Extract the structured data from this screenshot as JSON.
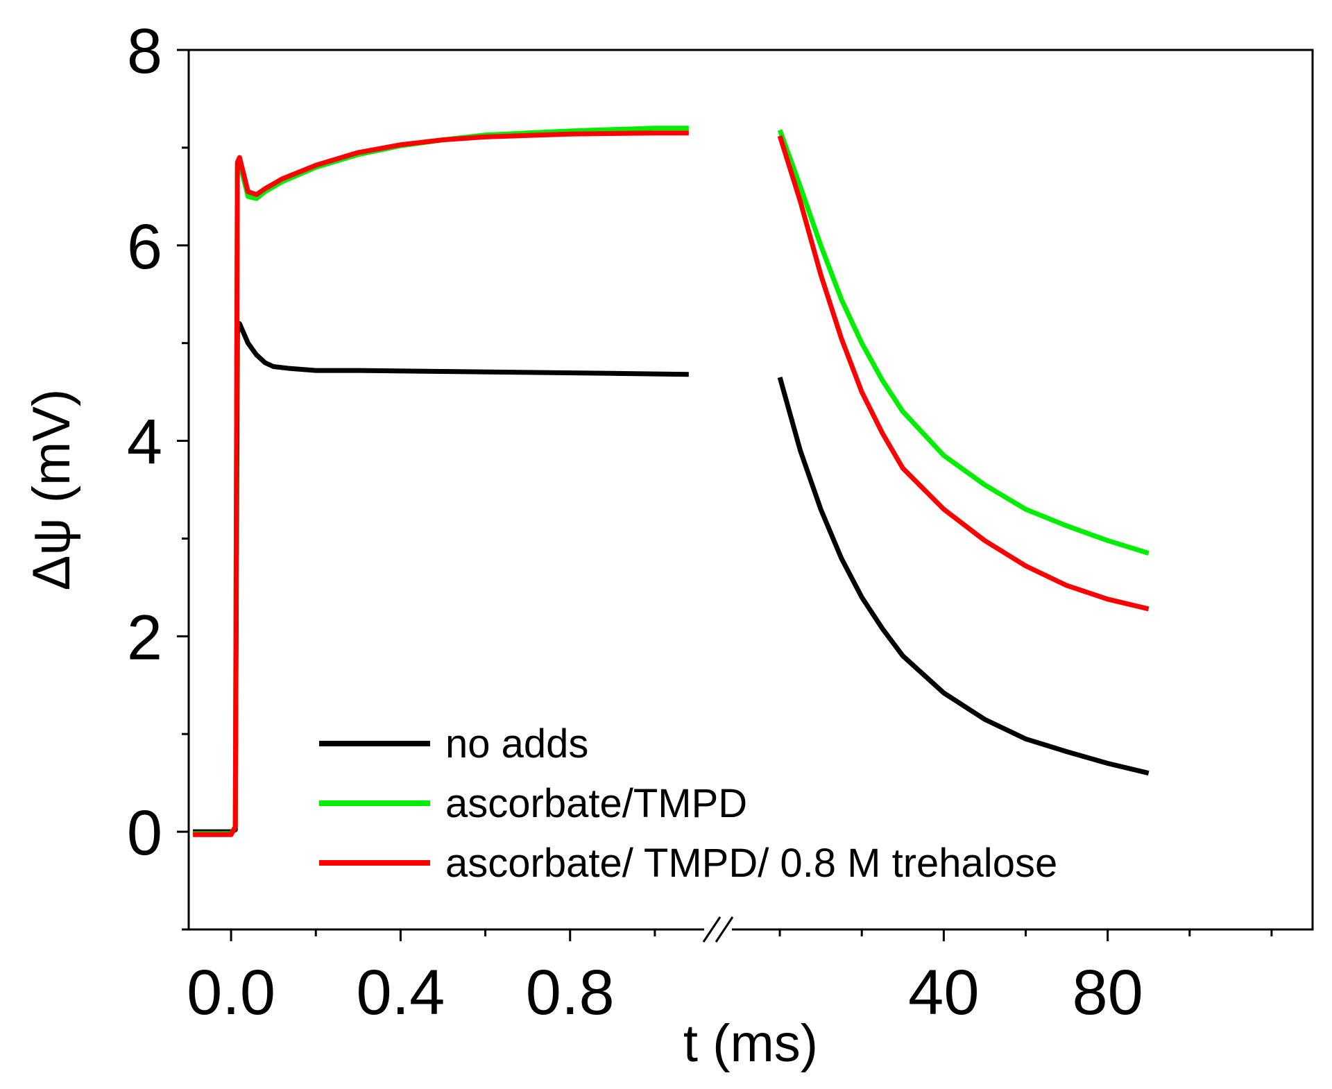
{
  "chart_data": {
    "type": "line",
    "xlabel": "t (ms)",
    "ylabel": "Δψ (mV)",
    "ylim": [
      -1,
      8
    ],
    "y_ticks": [
      0,
      2,
      4,
      6,
      8
    ],
    "y_minor_ticks": [
      -1,
      1,
      3,
      5,
      7
    ],
    "x_broken_axis": true,
    "x_segments": [
      {
        "xlim": [
          -0.1,
          1.1
        ],
        "ticks": [
          0.0,
          0.4,
          0.8
        ],
        "tick_labels": [
          "0.0",
          "0.4",
          "0.8"
        ],
        "minor_ticks": [
          0.2,
          0.6,
          1.0
        ]
      },
      {
        "xlim": [
          -10,
          130
        ],
        "ticks": [
          40,
          80
        ],
        "tick_labels": [
          "40",
          "80"
        ],
        "minor_ticks": [
          0,
          20,
          60,
          100,
          120
        ]
      }
    ],
    "legend_position": "bottom-left",
    "grid": false,
    "series": [
      {
        "name": "no adds",
        "color": "#000000",
        "segment1": {
          "x": [
            -0.09,
            0.0,
            0.01,
            0.015,
            0.02,
            0.04,
            0.06,
            0.08,
            0.1,
            0.14,
            0.2,
            0.3,
            0.5,
            0.7,
            0.9,
            1.08
          ],
          "y": [
            0.0,
            0.0,
            0.02,
            5.1,
            5.2,
            5.0,
            4.88,
            4.8,
            4.76,
            4.74,
            4.72,
            4.72,
            4.71,
            4.7,
            4.69,
            4.68
          ]
        },
        "segment2": {
          "x": [
            0,
            5,
            10,
            15,
            20,
            25,
            30,
            40,
            50,
            60,
            70,
            80,
            90
          ],
          "y": [
            4.65,
            3.9,
            3.3,
            2.8,
            2.4,
            2.08,
            1.8,
            1.42,
            1.15,
            0.95,
            0.82,
            0.7,
            0.6
          ]
        }
      },
      {
        "name": "ascorbate/TMPD",
        "color": "#00ee00",
        "segment1": {
          "x": [
            -0.09,
            0.0,
            0.01,
            0.015,
            0.02,
            0.04,
            0.06,
            0.08,
            0.12,
            0.2,
            0.3,
            0.4,
            0.5,
            0.6,
            0.8,
            1.0,
            1.08
          ],
          "y": [
            -0.02,
            -0.02,
            0.05,
            6.8,
            6.85,
            6.5,
            6.48,
            6.55,
            6.65,
            6.8,
            6.93,
            7.02,
            7.08,
            7.13,
            7.17,
            7.2,
            7.2
          ]
        },
        "segment2": {
          "x": [
            0,
            5,
            10,
            15,
            20,
            25,
            30,
            40,
            50,
            60,
            70,
            80,
            90
          ],
          "y": [
            7.18,
            6.6,
            6.0,
            5.45,
            5.0,
            4.62,
            4.3,
            3.85,
            3.55,
            3.3,
            3.13,
            2.98,
            2.85
          ]
        }
      },
      {
        "name": "ascorbate/ TMPD/ 0.8 M trehalose",
        "color": "#ff0000",
        "segment1": {
          "x": [
            -0.09,
            0.0,
            0.01,
            0.015,
            0.02,
            0.04,
            0.06,
            0.08,
            0.12,
            0.2,
            0.3,
            0.4,
            0.5,
            0.6,
            0.8,
            1.0,
            1.08
          ],
          "y": [
            -0.03,
            -0.03,
            0.05,
            6.85,
            6.9,
            6.55,
            6.52,
            6.58,
            6.68,
            6.82,
            6.95,
            7.03,
            7.08,
            7.11,
            7.14,
            7.15,
            7.15
          ]
        },
        "segment2": {
          "x": [
            0,
            5,
            10,
            15,
            20,
            25,
            30,
            40,
            50,
            60,
            70,
            80,
            90
          ],
          "y": [
            7.12,
            6.45,
            5.7,
            5.05,
            4.5,
            4.08,
            3.72,
            3.3,
            2.98,
            2.72,
            2.52,
            2.38,
            2.28
          ]
        }
      }
    ]
  }
}
